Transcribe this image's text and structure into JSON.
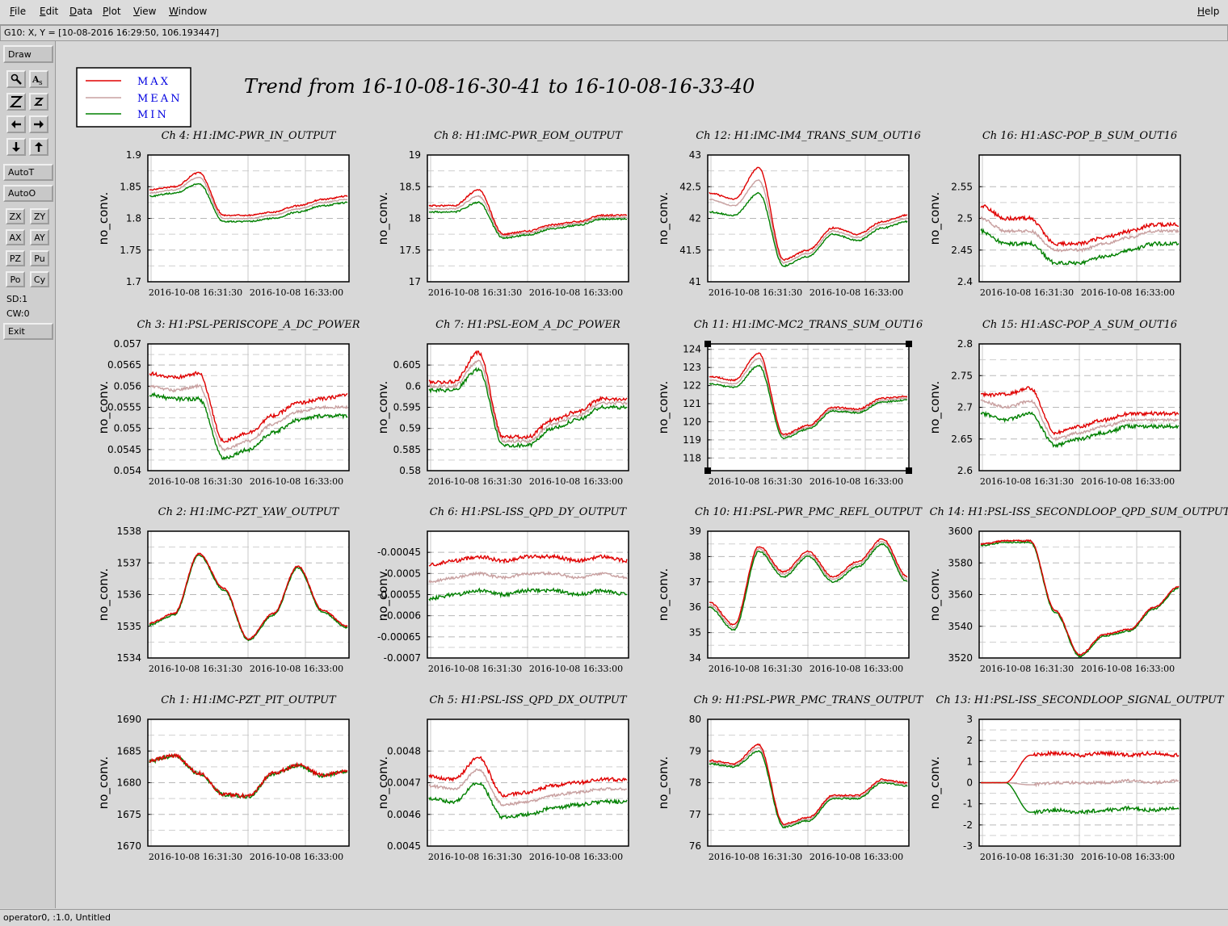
{
  "menu": {
    "items": [
      {
        "label": "File",
        "underline": "F",
        "rest": "ile"
      },
      {
        "label": "Edit",
        "underline": "E",
        "rest": "dit"
      },
      {
        "label": "Data",
        "underline": "D",
        "rest": "ata"
      },
      {
        "label": "Plot",
        "underline": "P",
        "rest": "lot"
      },
      {
        "label": "View",
        "underline": "V",
        "rest": "iew"
      },
      {
        "label": "Window",
        "underline": "W",
        "rest": "indow"
      }
    ],
    "help": {
      "underline": "H",
      "rest": "elp"
    }
  },
  "coord_readout": "G10: X, Y = [10-08-2016 16:29:50, 106.193447]",
  "toolbar": {
    "draw": "Draw",
    "autot": "AutoT",
    "autoo": "AutoO",
    "zoom_buttons": [
      "ZX",
      "ZY",
      "AX",
      "AY",
      "PZ",
      "Pu",
      "Po",
      "Cy"
    ],
    "sd": "SD:1",
    "cw": "CW:0",
    "exit": "Exit"
  },
  "status": "operator0, :1.0, Untitled",
  "legend": {
    "max": "MAX",
    "mean": "MEAN",
    "min": "MIN"
  },
  "trend_title": "Trend from 16-10-08-16-30-41 to 16-10-08-16-33-40",
  "colors": {
    "max": "#e00000",
    "mean": "#c8a0a0",
    "min": "#008000",
    "legend_text": "#0000e0"
  },
  "chart_data": [
    {
      "title": "Ch 4: H1:IMC-PWR_IN_OUTPUT",
      "ylabel": "no_conv.",
      "yticks": [
        "1.9",
        "1.85",
        "1.8",
        "1.75",
        "1.7"
      ],
      "ylim": [
        1.7,
        1.9
      ],
      "xticks": [
        "2016-10-08 16:31:30",
        "2016-10-08 16:33:00"
      ],
      "series_levels": {
        "max": [
          1.845,
          1.85,
          1.872,
          1.805,
          1.805,
          1.81,
          1.82,
          1.83,
          1.835
        ],
        "mean": [
          1.84,
          1.845,
          1.865,
          1.8,
          1.8,
          1.805,
          1.815,
          1.825,
          1.83
        ],
        "min": [
          1.835,
          1.84,
          1.855,
          1.795,
          1.795,
          1.8,
          1.81,
          1.82,
          1.825
        ]
      }
    },
    {
      "title": "Ch 8: H1:IMC-PWR_EOM_OUTPUT",
      "ylabel": "no_conv.",
      "yticks": [
        "19",
        "18.5",
        "18",
        "17.5",
        "17"
      ],
      "ylim": [
        17,
        19
      ],
      "xticks": [
        "2016-10-08 16:31:30",
        "2016-10-08 16:33:00"
      ],
      "series_levels": {
        "max": [
          18.2,
          18.2,
          18.45,
          17.75,
          17.8,
          17.9,
          17.95,
          18.05,
          18.05
        ],
        "mean": [
          18.15,
          18.15,
          18.35,
          17.72,
          17.77,
          17.87,
          17.92,
          18.02,
          18.02
        ],
        "min": [
          18.1,
          18.1,
          18.25,
          17.69,
          17.74,
          17.84,
          17.89,
          17.99,
          17.99
        ]
      }
    },
    {
      "title": "Ch 12: H1:IMC-IM4_TRANS_SUM_OUT16",
      "ylabel": "no_conv.",
      "yticks": [
        "43",
        "42.5",
        "42",
        "41.5",
        "41"
      ],
      "ylim": [
        41,
        43
      ],
      "xticks": [
        "2016-10-08 16:31:30",
        "2016-10-08 16:33:00"
      ],
      "series_levels": {
        "max": [
          42.4,
          42.3,
          42.8,
          41.35,
          41.5,
          41.85,
          41.75,
          41.95,
          42.05
        ],
        "mean": [
          42.3,
          42.2,
          42.6,
          41.3,
          41.45,
          41.8,
          41.7,
          41.9,
          42.0
        ],
        "min": [
          42.1,
          42.05,
          42.4,
          41.25,
          41.4,
          41.75,
          41.65,
          41.85,
          41.95
        ]
      }
    },
    {
      "title": "Ch 16: H1:ASC-POP_B_SUM_OUT16",
      "ylabel": "no_conv.",
      "yticks": [
        "2.55",
        "2.5",
        "2.45",
        "2.4"
      ],
      "ylim": [
        2.4,
        2.6
      ],
      "xticks": [
        "2016-10-08 16:31:30",
        "2016-10-08 16:33:00"
      ],
      "series_levels": {
        "max": [
          2.52,
          2.5,
          2.5,
          2.46,
          2.46,
          2.47,
          2.48,
          2.49,
          2.49
        ],
        "mean": [
          2.5,
          2.48,
          2.48,
          2.45,
          2.45,
          2.46,
          2.47,
          2.48,
          2.48
        ],
        "min": [
          2.48,
          2.46,
          2.46,
          2.43,
          2.43,
          2.44,
          2.45,
          2.46,
          2.46
        ]
      }
    },
    {
      "title": "Ch 3: H1:PSL-PERISCOPE_A_DC_POWER",
      "ylabel": "no_conv.",
      "yticks": [
        "0.057",
        "0.0565",
        "0.056",
        "0.0555",
        "0.055",
        "0.0545",
        "0.054"
      ],
      "ylim": [
        0.054,
        0.057
      ],
      "xticks": [
        "2016-10-08 16:31:30",
        "2016-10-08 16:33:00"
      ],
      "series_levels": {
        "max": [
          0.0563,
          0.0562,
          0.0563,
          0.0547,
          0.0549,
          0.0553,
          0.0556,
          0.0557,
          0.0558
        ],
        "mean": [
          0.056,
          0.0559,
          0.056,
          0.0545,
          0.0547,
          0.0551,
          0.0554,
          0.0555,
          0.0555
        ],
        "min": [
          0.0558,
          0.0557,
          0.0557,
          0.0543,
          0.0545,
          0.0549,
          0.0552,
          0.0553,
          0.0553
        ]
      }
    },
    {
      "title": "Ch 7: H1:PSL-EOM_A_DC_POWER",
      "ylabel": "no_conv.",
      "yticks": [
        "0.605",
        "0.6",
        "0.595",
        "0.59",
        "0.585",
        "0.58"
      ],
      "ylim": [
        0.58,
        0.61
      ],
      "xticks": [
        "2016-10-08 16:31:30",
        "2016-10-08 16:33:00"
      ],
      "series_levels": {
        "max": [
          0.601,
          0.601,
          0.608,
          0.588,
          0.588,
          0.592,
          0.594,
          0.597,
          0.597
        ],
        "mean": [
          0.6,
          0.6,
          0.606,
          0.587,
          0.587,
          0.591,
          0.593,
          0.596,
          0.596
        ],
        "min": [
          0.599,
          0.599,
          0.604,
          0.586,
          0.586,
          0.59,
          0.592,
          0.595,
          0.595
        ]
      }
    },
    {
      "title": "Ch 11: H1:IMC-MC2_TRANS_SUM_OUT16",
      "ylabel": "no_conv.",
      "yticks": [
        "124",
        "123",
        "122",
        "121",
        "120",
        "119",
        "118"
      ],
      "ylim": [
        117.3,
        124.3
      ],
      "xticks": [
        "2016-10-08 16:31:30",
        "2016-10-08 16:33:00"
      ],
      "selected": true,
      "series_levels": {
        "max": [
          122.5,
          122.3,
          123.8,
          119.3,
          119.8,
          120.8,
          120.7,
          121.3,
          121.4
        ],
        "mean": [
          122.3,
          122.1,
          123.5,
          119.2,
          119.7,
          120.7,
          120.6,
          121.2,
          121.3
        ],
        "min": [
          122.1,
          121.9,
          123.1,
          119.1,
          119.6,
          120.6,
          120.5,
          121.1,
          121.2
        ]
      }
    },
    {
      "title": "Ch 15: H1:ASC-POP_A_SUM_OUT16",
      "ylabel": "no_conv.",
      "yticks": [
        "2.8",
        "2.75",
        "2.7",
        "2.65",
        "2.6"
      ],
      "ylim": [
        2.6,
        2.8
      ],
      "xticks": [
        "2016-10-08 16:31:30",
        "2016-10-08 16:33:00"
      ],
      "series_levels": {
        "max": [
          2.72,
          2.72,
          2.73,
          2.66,
          2.67,
          2.68,
          2.69,
          2.69,
          2.69
        ],
        "mean": [
          2.71,
          2.7,
          2.71,
          2.65,
          2.66,
          2.67,
          2.68,
          2.68,
          2.68
        ],
        "min": [
          2.69,
          2.68,
          2.69,
          2.64,
          2.65,
          2.66,
          2.67,
          2.67,
          2.67
        ]
      }
    },
    {
      "title": "Ch 2: H1:IMC-PZT_YAW_OUTPUT",
      "ylabel": "no_conv.",
      "yticks": [
        "1538",
        "1537",
        "1536",
        "1535",
        "1534"
      ],
      "ylim": [
        1534,
        1538
      ],
      "xticks": [
        "2016-10-08 16:31:30",
        "2016-10-08 16:33:00"
      ],
      "series_levels": {
        "max": [
          1535.1,
          1535.4,
          1537.3,
          1536.2,
          1534.6,
          1535.4,
          1536.9,
          1535.5,
          1535.0
        ],
        "mean": [
          1535.1,
          1535.4,
          1537.3,
          1536.2,
          1534.6,
          1535.4,
          1536.9,
          1535.5,
          1535.0
        ],
        "min": [
          1535.05,
          1535.35,
          1537.25,
          1536.15,
          1534.55,
          1535.35,
          1536.85,
          1535.45,
          1534.95
        ]
      }
    },
    {
      "title": "Ch 6: H1:PSL-ISS_QPD_DY_OUTPUT",
      "ylabel": "no_conv.",
      "yticks": [
        "-0.00045",
        "-0.0005",
        "-0.00055",
        "-0.0006",
        "-0.00065",
        "-0.0007"
      ],
      "ylim": [
        -0.0007,
        -0.0004
      ],
      "xticks": [
        "2016-10-08 16:31:30",
        "2016-10-08 16:33:00"
      ],
      "series_levels": {
        "max": [
          -0.00048,
          -0.00047,
          -0.00046,
          -0.00047,
          -0.00046,
          -0.00046,
          -0.00047,
          -0.00046,
          -0.00047
        ],
        "mean": [
          -0.00052,
          -0.00051,
          -0.0005,
          -0.00051,
          -0.0005,
          -0.0005,
          -0.00051,
          -0.0005,
          -0.00051
        ],
        "min": [
          -0.00056,
          -0.00055,
          -0.00054,
          -0.00055,
          -0.00054,
          -0.00054,
          -0.00055,
          -0.00054,
          -0.00055
        ]
      }
    },
    {
      "title": "Ch 10: H1:PSL-PWR_PMC_REFL_OUTPUT",
      "ylabel": "no_conv.",
      "yticks": [
        "39",
        "38",
        "37",
        "36",
        "35",
        "34"
      ],
      "ylim": [
        34,
        39
      ],
      "xticks": [
        "2016-10-08 16:31:30",
        "2016-10-08 16:33:00"
      ],
      "series_levels": {
        "max": [
          36.2,
          35.3,
          38.4,
          37.4,
          38.2,
          37.2,
          37.8,
          38.7,
          37.2
        ],
        "mean": [
          36.1,
          35.2,
          38.3,
          37.3,
          38.1,
          37.1,
          37.7,
          38.6,
          37.1
        ],
        "min": [
          36.0,
          35.1,
          38.2,
          37.2,
          38.0,
          37.0,
          37.6,
          38.5,
          37.0
        ]
      }
    },
    {
      "title": "Ch 14: H1:PSL-ISS_SECONDLOOP_QPD_SUM_OUTPUT",
      "ylabel": "no_conv.",
      "yticks": [
        "3600",
        "3580",
        "3560",
        "3540",
        "3520"
      ],
      "ylim": [
        3520,
        3600
      ],
      "xticks": [
        "2016-10-08 16:31:30",
        "2016-10-08 16:33:00"
      ],
      "series_levels": {
        "max": [
          3592,
          3594,
          3594,
          3550,
          3522,
          3535,
          3538,
          3552,
          3565
        ],
        "mean": [
          3592,
          3594,
          3594,
          3550,
          3522,
          3535,
          3538,
          3552,
          3565
        ],
        "min": [
          3591,
          3593,
          3593,
          3549,
          3521,
          3534,
          3537,
          3551,
          3564
        ]
      }
    },
    {
      "title": "Ch 1: H1:IMC-PZT_PIT_OUTPUT",
      "ylabel": "no_conv.",
      "yticks": [
        "1690",
        "1685",
        "1680",
        "1675",
        "1670"
      ],
      "ylim": [
        1670,
        1690
      ],
      "xticks": [
        "2016-10-08 16:31:30",
        "2016-10-08 16:33:00"
      ],
      "series_levels": {
        "max": [
          1683.5,
          1684.3,
          1681.5,
          1678.2,
          1677.9,
          1681.5,
          1682.8,
          1681.2,
          1681.8
        ],
        "mean": [
          1683.5,
          1684.3,
          1681.5,
          1678.2,
          1677.9,
          1681.5,
          1682.8,
          1681.2,
          1681.8
        ],
        "min": [
          1683.4,
          1684.2,
          1681.4,
          1678.1,
          1677.8,
          1681.4,
          1682.7,
          1681.1,
          1681.7
        ]
      }
    },
    {
      "title": "Ch 5: H1:PSL-ISS_QPD_DX_OUTPUT",
      "ylabel": "no_conv.",
      "yticks": [
        "0.0048",
        "0.0047",
        "0.0046",
        "0.0045"
      ],
      "ylim": [
        0.0045,
        0.0049
      ],
      "xticks": [
        "2016-10-08 16:31:30",
        "2016-10-08 16:33:00"
      ],
      "series_levels": {
        "max": [
          0.00472,
          0.00471,
          0.00478,
          0.00466,
          0.00467,
          0.00469,
          0.0047,
          0.00471,
          0.00471
        ],
        "mean": [
          0.00469,
          0.00468,
          0.00474,
          0.00463,
          0.00464,
          0.00466,
          0.00467,
          0.00468,
          0.00468
        ],
        "min": [
          0.00465,
          0.00464,
          0.0047,
          0.00459,
          0.0046,
          0.00462,
          0.00463,
          0.00464,
          0.00464
        ]
      }
    },
    {
      "title": "Ch 9: H1:PSL-PWR_PMC_TRANS_OUTPUT",
      "ylabel": "no_conv.",
      "yticks": [
        "80",
        "79",
        "78",
        "77",
        "76"
      ],
      "ylim": [
        76,
        80
      ],
      "xticks": [
        "2016-10-08 16:31:30",
        "2016-10-08 16:33:00"
      ],
      "series_levels": {
        "max": [
          78.7,
          78.6,
          79.2,
          76.7,
          76.9,
          77.6,
          77.6,
          78.1,
          78.0
        ],
        "mean": [
          78.65,
          78.55,
          79.1,
          76.65,
          76.85,
          77.55,
          77.55,
          78.05,
          77.95
        ],
        "min": [
          78.6,
          78.5,
          79.0,
          76.6,
          76.8,
          77.5,
          77.5,
          78.0,
          77.9
        ]
      }
    },
    {
      "title": "Ch 13: H1:PSL-ISS_SECONDLOOP_SIGNAL_OUTPUT",
      "ylabel": "no_conv.",
      "yticks": [
        "3",
        "2",
        "1",
        "0",
        "-1",
        "-2",
        "-3"
      ],
      "ylim": [
        -3,
        3
      ],
      "xticks": [
        "2016-10-08 16:31:30",
        "2016-10-08 16:33:00"
      ],
      "series_levels": {
        "max": [
          0.0,
          0.0,
          1.3,
          1.4,
          1.3,
          1.4,
          1.3,
          1.4,
          1.3
        ],
        "mean": [
          0.0,
          0.0,
          -0.1,
          0.0,
          0.0,
          0.0,
          0.1,
          0.0,
          0.1
        ],
        "min": [
          0.0,
          0.0,
          -1.4,
          -1.3,
          -1.4,
          -1.3,
          -1.2,
          -1.3,
          -1.2
        ]
      }
    }
  ]
}
